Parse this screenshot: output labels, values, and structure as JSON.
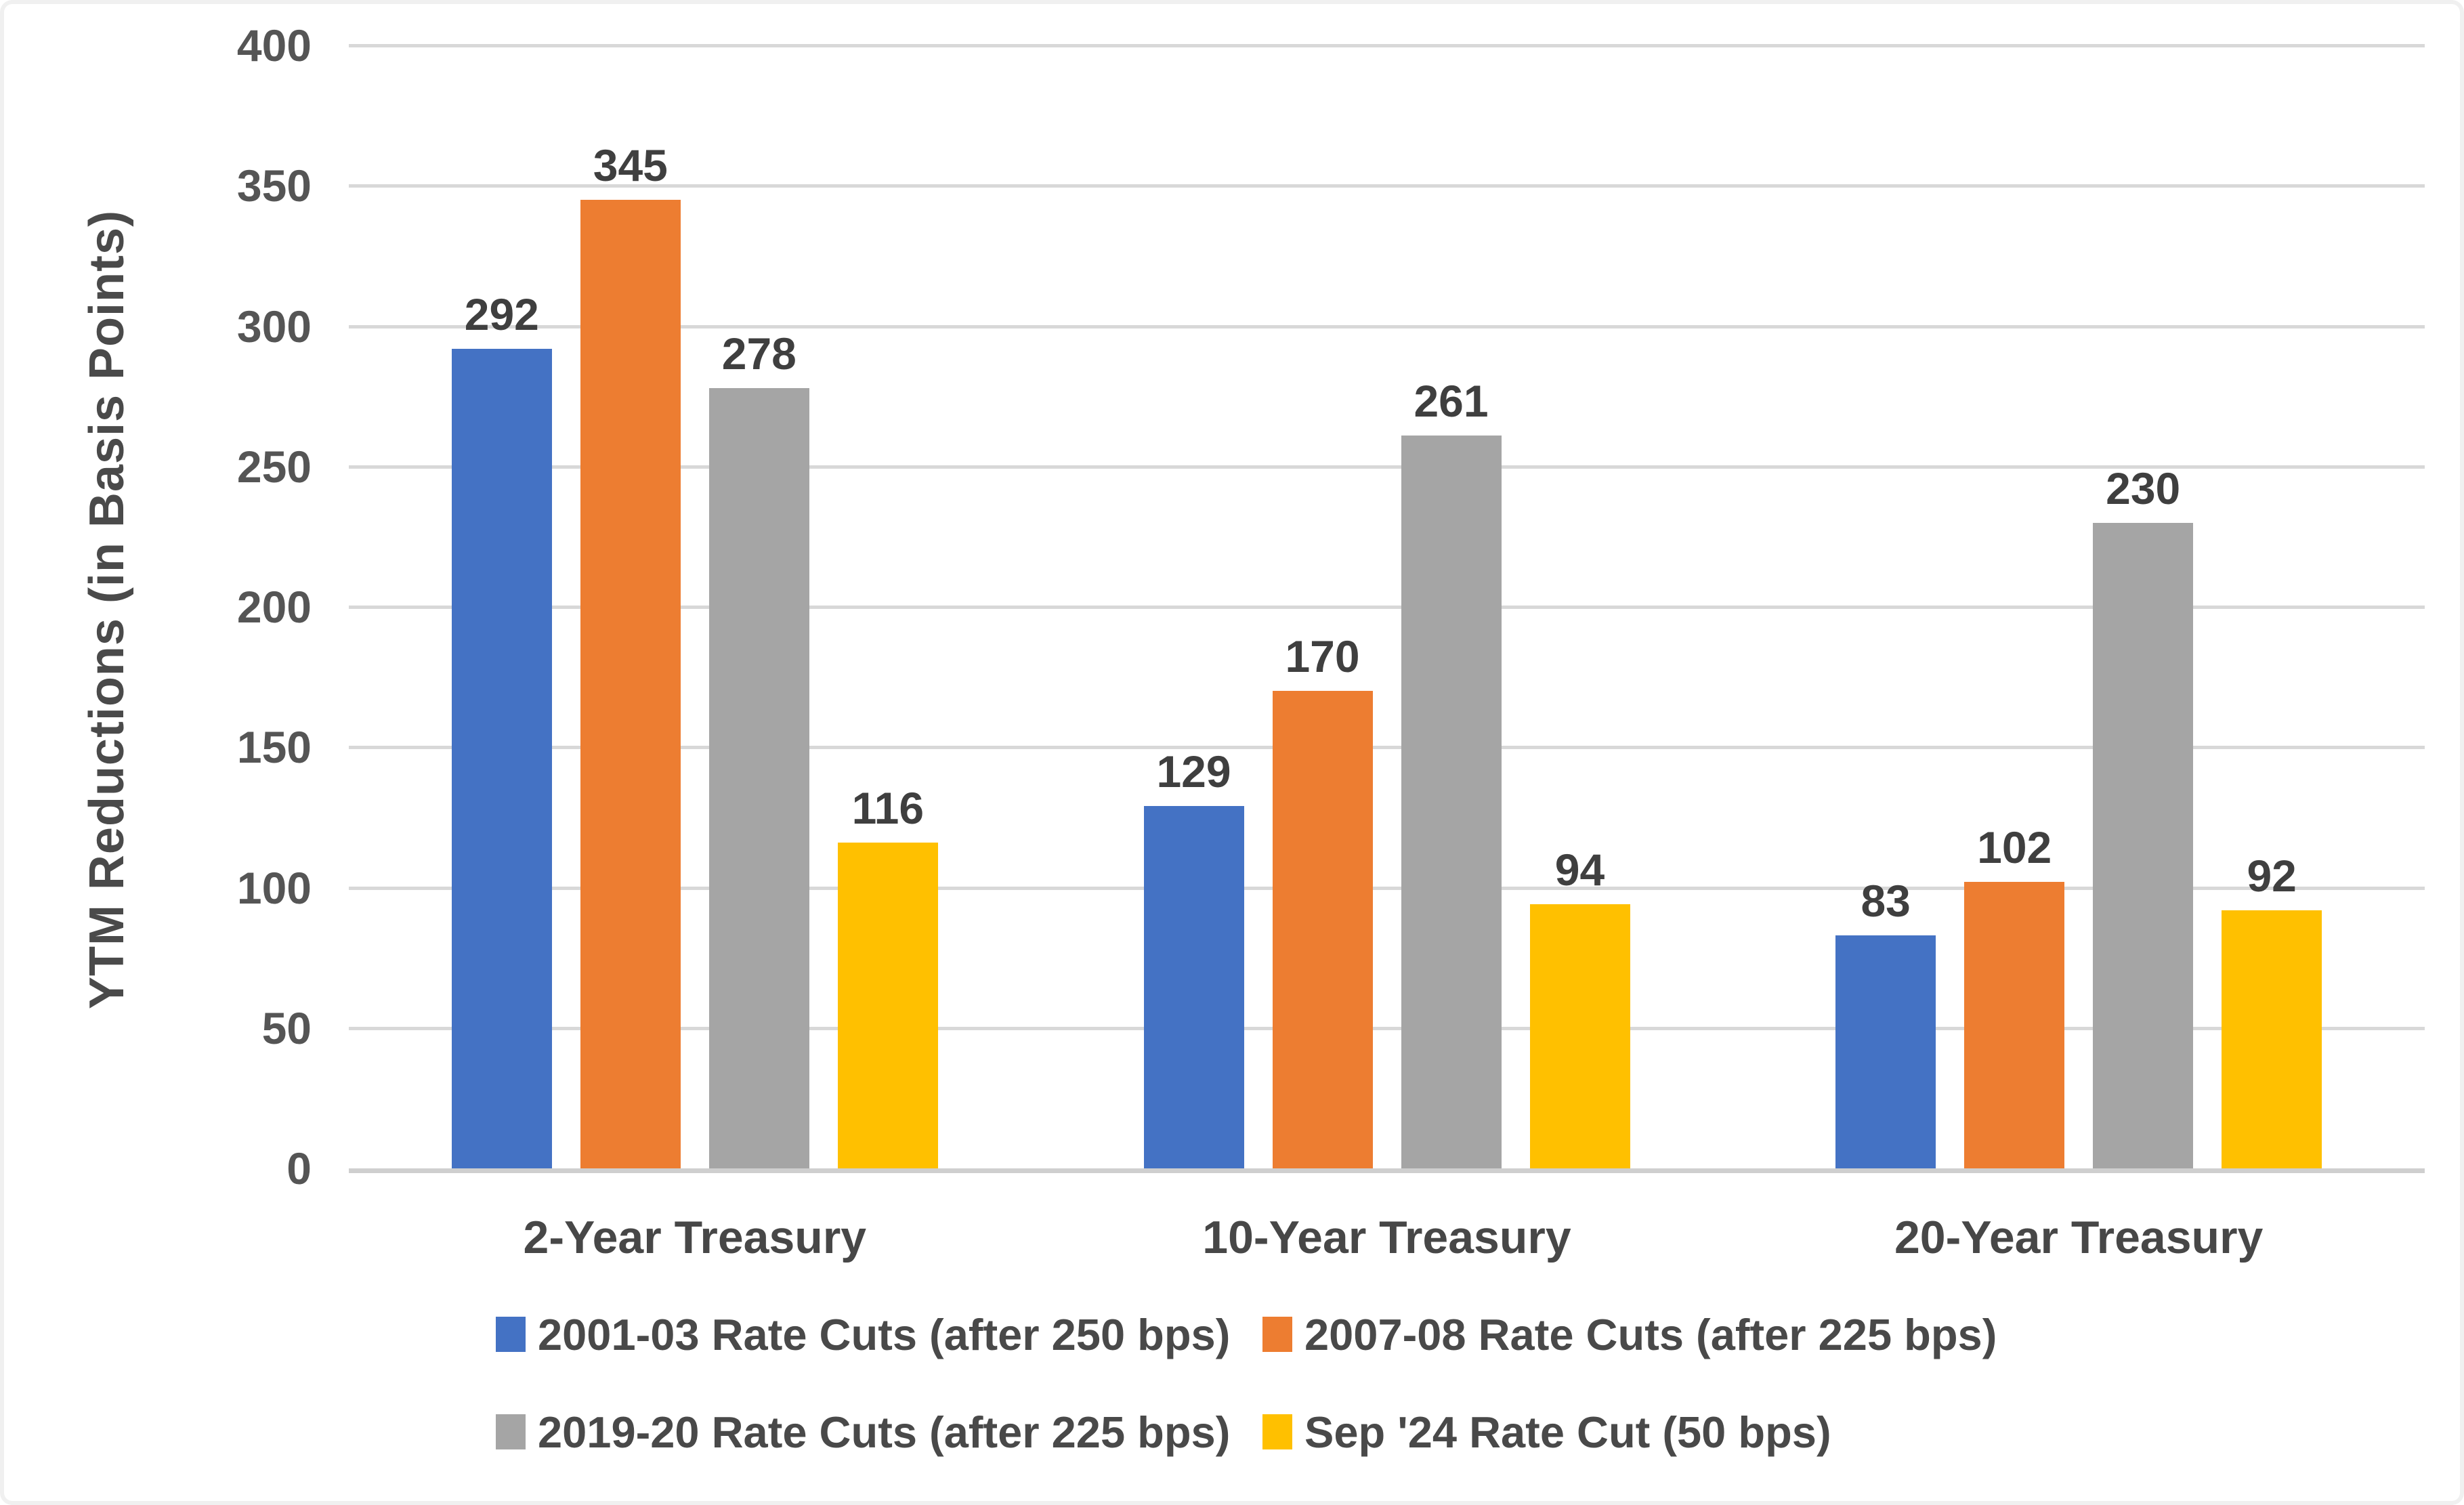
{
  "chart_data": {
    "type": "bar",
    "title": "",
    "xlabel": "",
    "ylabel": "YTM Reductions (in Basis Points)",
    "ylim": [
      0,
      400
    ],
    "yticks": [
      0,
      50,
      100,
      150,
      200,
      250,
      300,
      350,
      400
    ],
    "grid": true,
    "data_labels": true,
    "legend_position": "bottom",
    "categories": [
      "2-Year Treasury",
      "10-Year Treasury",
      "20-Year Treasury"
    ],
    "series": [
      {
        "name": "2001-03 Rate Cuts (after 250 bps)",
        "color": "#4472C4",
        "values": [
          292,
          129,
          83
        ]
      },
      {
        "name": "2007-08 Rate Cuts (after 225 bps)",
        "color": "#ED7D31",
        "values": [
          345,
          170,
          102
        ]
      },
      {
        "name": "2019-20 Rate Cuts (after 225 bps)",
        "color": "#A5A5A5",
        "values": [
          278,
          261,
          230
        ]
      },
      {
        "name": "Sep '24 Rate Cut (50 bps)",
        "color": "#FFC000",
        "values": [
          116,
          94,
          92
        ]
      }
    ]
  },
  "colors": {
    "gridline": "#d8d8d8",
    "axis_baseline": "#cfcfcf",
    "text": "#474747",
    "background": "#ffffff"
  }
}
